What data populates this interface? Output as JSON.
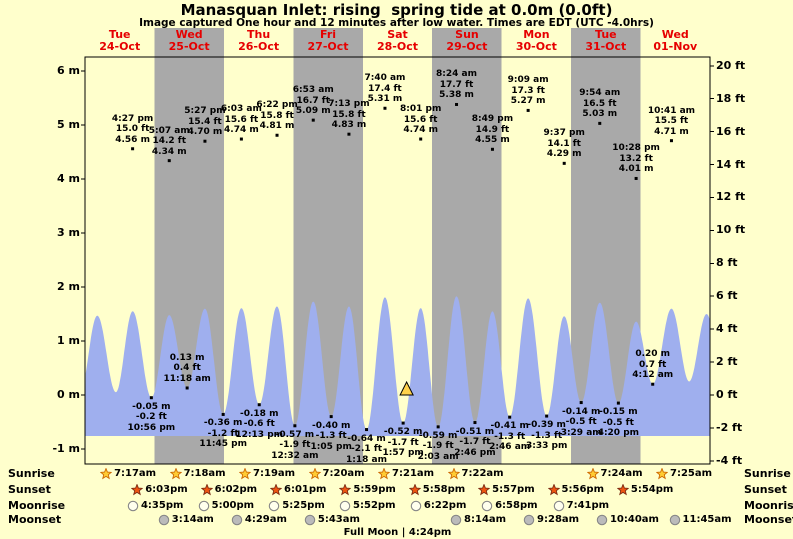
{
  "title": "Manasquan Inlet: rising  spring tide at 0.0m (0.0ft)",
  "subtitle": "Image captured One hour and 12 minutes after low water. Times are EDT (UTC -4.0hrs)",
  "colors": {
    "page_bg": "#ffffcc",
    "band_yellow": "#ffffcc",
    "band_gray": "#a9a9a9",
    "wave_blue": "#9fafee",
    "date_red": "#e60000",
    "marker_yellow": "#ffd24a",
    "sunrise_star": "#ffcc33",
    "sunrise_star_stroke": "#cc6600",
    "sunset_star": "#ee5511",
    "sunset_star_stroke": "#7a2a12",
    "moonrise_moon": "#ffffee",
    "moonset_moon": "#bbbbbb",
    "moon_stroke": "#888888"
  },
  "chart_data": {
    "type": "area",
    "title": "Manasquan Inlet tide curve",
    "ylabel_left": "meters",
    "ylabel_right": "feet",
    "y_axis_m": [
      {
        "v": 6,
        "label": "6 m"
      },
      {
        "v": 5,
        "label": "5 m"
      },
      {
        "v": 4,
        "label": "4 m"
      },
      {
        "v": 3,
        "label": "3 m"
      },
      {
        "v": 2,
        "label": "2 m"
      },
      {
        "v": 1,
        "label": "1 m"
      },
      {
        "v": 0,
        "label": "0 m"
      },
      {
        "v": -1,
        "label": "-1 m"
      }
    ],
    "y_axis_ft": [
      {
        "v": 20,
        "label": "20 ft"
      },
      {
        "v": 18,
        "label": "18 ft"
      },
      {
        "v": 16,
        "label": "16 ft"
      },
      {
        "v": 14,
        "label": "14 ft"
      },
      {
        "v": 12,
        "label": "12 ft"
      },
      {
        "v": 10,
        "label": "10 ft"
      },
      {
        "v": 8,
        "label": "8 ft"
      },
      {
        "v": 6,
        "label": "6 ft"
      },
      {
        "v": 4,
        "label": "4 ft"
      },
      {
        "v": 2,
        "label": "2 ft"
      },
      {
        "v": 0,
        "label": "0 ft"
      },
      {
        "v": -2,
        "label": "-2 ft"
      },
      {
        "v": -4,
        "label": "-4 ft"
      }
    ],
    "days": [
      {
        "weekday": "Tue",
        "date": "24-Oct"
      },
      {
        "weekday": "Wed",
        "date": "25-Oct"
      },
      {
        "weekday": "Thu",
        "date": "26-Oct"
      },
      {
        "weekday": "Fri",
        "date": "27-Oct"
      },
      {
        "weekday": "Sat",
        "date": "28-Oct"
      },
      {
        "weekday": "Sun",
        "date": "29-Oct"
      },
      {
        "weekday": "Mon",
        "date": "30-Oct"
      },
      {
        "weekday": "Tue",
        "date": "31-Oct"
      },
      {
        "weekday": "Wed",
        "date": "01-Nov"
      }
    ],
    "high_tides": [
      {
        "day": 0,
        "t": 16.45,
        "time": "4:27 pm",
        "ft": "15.0 ft",
        "m": "4.56 m",
        "height_m": 4.56
      },
      {
        "day": 1,
        "t": 5.117,
        "time": "5:07 am",
        "ft": "14.2 ft",
        "m": "4.34 m",
        "height_m": 4.34
      },
      {
        "day": 1,
        "t": 17.45,
        "time": "5:27 pm",
        "ft": "15.4 ft",
        "m": "4.70 m",
        "height_m": 4.7
      },
      {
        "day": 2,
        "t": 6.05,
        "time": "6:03 am",
        "ft": "15.6 ft",
        "m": "4.74 m",
        "height_m": 4.74
      },
      {
        "day": 2,
        "t": 18.367,
        "time": "6:22 pm",
        "ft": "15.8 ft",
        "m": "4.81 m",
        "height_m": 4.81
      },
      {
        "day": 3,
        "t": 6.883,
        "time": "6:53 am",
        "ft": "16.7 ft",
        "m": "5.09 m",
        "height_m": 5.09
      },
      {
        "day": 3,
        "t": 19.217,
        "time": "7:13 pm",
        "ft": "15.8 ft",
        "m": "4.83 m",
        "height_m": 4.83
      },
      {
        "day": 4,
        "t": 7.667,
        "time": "7:40 am",
        "ft": "17.4 ft",
        "m": "5.31 m",
        "height_m": 5.31
      },
      {
        "day": 4,
        "t": 20.017,
        "time": "8:01 pm",
        "ft": "15.6 ft",
        "m": "4.74 m",
        "height_m": 4.74
      },
      {
        "day": 5,
        "t": 8.4,
        "time": "8:24 am",
        "ft": "17.7 ft",
        "m": "5.38 m",
        "height_m": 5.38
      },
      {
        "day": 5,
        "t": 20.817,
        "time": "8:49 pm",
        "ft": "14.9 ft",
        "m": "4.55 m",
        "height_m": 4.55
      },
      {
        "day": 6,
        "t": 9.15,
        "time": "9:09 am",
        "ft": "17.3 ft",
        "m": "5.27 m",
        "height_m": 5.27
      },
      {
        "day": 6,
        "t": 21.617,
        "time": "9:37 pm",
        "ft": "14.1 ft",
        "m": "4.29 m",
        "height_m": 4.29
      },
      {
        "day": 7,
        "t": 9.9,
        "time": "9:54 am",
        "ft": "16.5 ft",
        "m": "5.03 m",
        "height_m": 5.03
      },
      {
        "day": 7,
        "t": 22.467,
        "time": "10:28 pm",
        "ft": "13.2 ft",
        "m": "4.01 m",
        "height_m": 4.01
      },
      {
        "day": 8,
        "t": 10.683,
        "time": "10:41 am",
        "ft": "15.5 ft",
        "m": "4.71 m",
        "height_m": 4.71
      }
    ],
    "low_tides": [
      {
        "day": 0,
        "t": 22.933,
        "time": "10:56 pm",
        "ft": "-0.2 ft",
        "m": "-0.05 m",
        "height_m": -0.05
      },
      {
        "day": 1,
        "t": 11.3,
        "time": "11:18 am",
        "ft": "0.4 ft",
        "m": "0.13 m",
        "height_m": 0.13
      },
      {
        "day": 1,
        "t": 23.75,
        "time": "11:45 pm",
        "ft": "-1.2 ft",
        "m": "-0.36 m",
        "height_m": -0.36
      },
      {
        "day": 2,
        "t": 12.217,
        "time": "12:13 pm",
        "ft": "-0.6 ft",
        "m": "-0.18 m",
        "height_m": -0.18
      },
      {
        "day": 3,
        "t": 0.533,
        "time": "12:32 am",
        "ft": "-1.9 ft",
        "m": "-0.57 m",
        "height_m": -0.57
      },
      {
        "day": 3,
        "t": 13.083,
        "time": "1:05 pm",
        "ft": "-1.3 ft",
        "m": "-0.40 m",
        "height_m": -0.4
      },
      {
        "day": 4,
        "t": 1.3,
        "time": "1:18 am",
        "ft": "-2.1 ft",
        "m": "-0.64 m",
        "height_m": -0.64
      },
      {
        "day": 4,
        "t": 13.95,
        "time": "1:57 pm",
        "ft": "-1.7 ft",
        "m": "-0.52 m",
        "height_m": -0.52
      },
      {
        "day": 5,
        "t": 2.05,
        "time": "2:03 am",
        "ft": "-1.9 ft",
        "m": "-0.59 m",
        "height_m": -0.59
      },
      {
        "day": 5,
        "t": 14.767,
        "time": "2:46 pm",
        "ft": "-1.7 ft",
        "m": "-0.51 m",
        "height_m": -0.51
      },
      {
        "day": 6,
        "t": 2.767,
        "time": "2:46 am",
        "ft": "-1.3 ft",
        "m": "-0.41 m",
        "height_m": -0.41
      },
      {
        "day": 6,
        "t": 15.55,
        "time": "3:33 pm",
        "ft": "-1.3 ft",
        "m": "-0.39 m",
        "height_m": -0.39
      },
      {
        "day": 7,
        "t": 3.483,
        "time": "3:29 am",
        "ft": "-0.5 ft",
        "m": "-0.14 m",
        "height_m": -0.14
      },
      {
        "day": 7,
        "t": 16.333,
        "time": "4:20 pm",
        "ft": "-0.5 ft",
        "m": "-0.15 m",
        "height_m": -0.15
      },
      {
        "day": 8,
        "t": 4.2,
        "time": "4:12 am",
        "ft": "0.7 ft",
        "m": "0.20 m",
        "height_m": 0.2
      }
    ],
    "current_marker": {
      "day": 4,
      "t": 15.15,
      "height_m": 0.0
    },
    "wave_extremes": [
      [
        -0.08,
        0.0
      ],
      [
        0.177,
        1.47
      ],
      [
        0.444,
        0.05
      ],
      [
        0.686,
        1.55
      ],
      [
        0.956,
        -0.05
      ],
      [
        1.213,
        1.48
      ],
      [
        1.471,
        0.13
      ],
      [
        1.727,
        1.6
      ],
      [
        1.99,
        -0.36
      ],
      [
        2.252,
        1.61
      ],
      [
        2.509,
        -0.18
      ],
      [
        2.765,
        1.64
      ],
      [
        3.022,
        -0.57
      ],
      [
        3.287,
        1.73
      ],
      [
        3.545,
        -0.4
      ],
      [
        3.801,
        1.64
      ],
      [
        4.054,
        -0.64
      ],
      [
        4.319,
        1.81
      ],
      [
        4.581,
        -0.52
      ],
      [
        4.834,
        1.61
      ],
      [
        5.085,
        -0.59
      ],
      [
        5.35,
        1.83
      ],
      [
        5.615,
        -0.51
      ],
      [
        5.867,
        1.55
      ],
      [
        6.115,
        -0.41
      ],
      [
        6.381,
        1.79
      ],
      [
        6.648,
        -0.39
      ],
      [
        6.9,
        1.46
      ],
      [
        7.145,
        -0.14
      ],
      [
        7.413,
        1.71
      ],
      [
        7.681,
        -0.15
      ],
      [
        7.936,
        1.36
      ],
      [
        8.175,
        0.2
      ],
      [
        8.445,
        1.6
      ],
      [
        8.7,
        0.25
      ],
      [
        8.95,
        1.5
      ],
      [
        9.2,
        0.3
      ]
    ]
  },
  "almanac": {
    "full_moon_label": "Full Moon | 4:24pm",
    "rows": [
      {
        "key": "sunrise",
        "label": "Sunrise",
        "icon": "sunrise-star",
        "events": [
          {
            "day": 0,
            "t": 7.283,
            "time": "7:17am"
          },
          {
            "day": 1,
            "t": 7.3,
            "time": "7:18am"
          },
          {
            "day": 2,
            "t": 7.317,
            "time": "7:19am"
          },
          {
            "day": 3,
            "t": 7.333,
            "time": "7:20am"
          },
          {
            "day": 4,
            "t": 7.35,
            "time": "7:21am"
          },
          {
            "day": 5,
            "t": 7.367,
            "time": "7:22am"
          },
          {
            "day": 7,
            "t": 7.4,
            "time": "7:24am"
          },
          {
            "day": 8,
            "t": 7.417,
            "time": "7:25am"
          }
        ]
      },
      {
        "key": "sunset",
        "label": "Sunset",
        "icon": "sunset-star",
        "events": [
          {
            "day": 0,
            "t": 18.05,
            "time": "6:03pm"
          },
          {
            "day": 1,
            "t": 18.033,
            "time": "6:02pm"
          },
          {
            "day": 2,
            "t": 18.017,
            "time": "6:01pm"
          },
          {
            "day": 3,
            "t": 17.983,
            "time": "5:59pm"
          },
          {
            "day": 4,
            "t": 17.967,
            "time": "5:58pm"
          },
          {
            "day": 5,
            "t": 17.95,
            "time": "5:57pm"
          },
          {
            "day": 6,
            "t": 17.933,
            "time": "5:56pm"
          },
          {
            "day": 7,
            "t": 17.9,
            "time": "5:54pm"
          }
        ]
      },
      {
        "key": "moonrise",
        "label": "Moonrise",
        "icon": "moonrise-circle",
        "events": [
          {
            "day": 0,
            "t": 16.583,
            "time": "4:35pm"
          },
          {
            "day": 1,
            "t": 17.0,
            "time": "5:00pm"
          },
          {
            "day": 2,
            "t": 17.417,
            "time": "5:25pm"
          },
          {
            "day": 3,
            "t": 17.867,
            "time": "5:52pm"
          },
          {
            "day": 4,
            "t": 18.367,
            "time": "6:22pm"
          },
          {
            "day": 5,
            "t": 18.967,
            "time": "6:58pm"
          },
          {
            "day": 6,
            "t": 19.683,
            "time": "7:41pm"
          }
        ]
      },
      {
        "key": "moonset",
        "label": "Moonset",
        "icon": "moonset-circle",
        "events": [
          {
            "day": 1,
            "t": 3.233,
            "time": "3:14am"
          },
          {
            "day": 2,
            "t": 4.483,
            "time": "4:29am"
          },
          {
            "day": 3,
            "t": 5.717,
            "time": "5:43am"
          },
          {
            "day": 5,
            "t": 8.233,
            "time": "8:14am"
          },
          {
            "day": 6,
            "t": 9.467,
            "time": "9:28am"
          },
          {
            "day": 7,
            "t": 10.667,
            "time": "10:40am"
          },
          {
            "day": 8,
            "t": 11.75,
            "time": "11:45am"
          }
        ]
      }
    ]
  }
}
